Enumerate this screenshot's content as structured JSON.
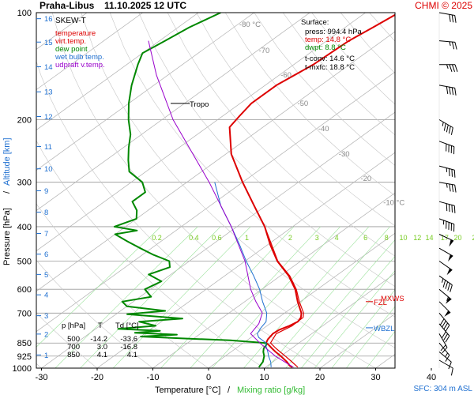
{
  "header": {
    "station": "Praha-Libus",
    "datetime": "11.10.2025 12 UTC",
    "copyright": "CHMI © 2025"
  },
  "chart_data": {
    "type": "line",
    "title": "Praha-Libus   11.10.2025 12 UTC",
    "xlabel": "Temperature [°C]",
    "xlabel_sep": "/",
    "xlabel_mix": "Mixing ratio [g/kg]",
    "ylabel": "Pressure [hPa]",
    "ylabel_sep": "/",
    "ylabel_alt": "Altitude [km]",
    "xlim": [
      -35,
      45
    ],
    "ylim": [
      1000,
      100
    ],
    "y_scale": "log",
    "grid": true,
    "x_ticks": [
      -30,
      -20,
      -10,
      0,
      10,
      20,
      30,
      40
    ],
    "pressure_ticks": [
      100,
      200,
      300,
      400,
      500,
      600,
      700,
      850,
      925,
      1000
    ],
    "altitude_ticks": [
      {
        "label": "1",
        "p": 918
      },
      {
        "label": "2",
        "p": 802
      },
      {
        "label": "3",
        "p": 712
      },
      {
        "label": "4",
        "p": 622
      },
      {
        "label": "5",
        "p": 545
      },
      {
        "label": "6",
        "p": 478
      },
      {
        "label": "7",
        "p": 418
      },
      {
        "label": "8",
        "p": 364
      },
      {
        "label": "9",
        "p": 317
      },
      {
        "label": "10",
        "p": 275
      },
      {
        "label": "11",
        "p": 238
      },
      {
        "label": "12",
        "p": 196
      },
      {
        "label": "13",
        "p": 167
      },
      {
        "label": "14",
        "p": 142
      },
      {
        "label": "15",
        "p": 121
      },
      {
        "label": "16",
        "p": 104
      }
    ],
    "isotherm_labels": [
      "-80 °C",
      "-70",
      "-60",
      "-50",
      "-40",
      "-30",
      "-20",
      "-10 °C"
    ],
    "mixing_ratio_labels": [
      "0.2",
      "0.4",
      "0.6",
      "1",
      "2",
      "3",
      "4",
      "6",
      "8",
      "10",
      "12",
      "14",
      "17",
      "20",
      "25"
    ],
    "legend_title": "SKEW-T",
    "legend": [
      {
        "name": "temperature",
        "color": "#dd0000"
      },
      {
        "name": "virt.temp.",
        "color": "#dd0000"
      },
      {
        "name": "dew point",
        "color": "#008800"
      },
      {
        "name": "wet bulb temp.",
        "color": "#1e6fd0"
      },
      {
        "name": "udpraft v.temp.",
        "color": "#9900cc"
      }
    ],
    "surface": {
      "title": "Surface:",
      "press": "press: 994.4 hPa",
      "temp": "temp: 14.8 °C",
      "dwpt": "dwpt: 8.8 °C",
      "tconv": "t-conv: 14.6 °C",
      "tmxfc": "t-mxfc: 18.8 °C"
    },
    "levels_table": {
      "headers": [
        "p [hPa]",
        "T",
        "Td [°C]"
      ],
      "rows": [
        [
          "500",
          "-14.2",
          "-33.6"
        ],
        [
          "700",
          "3.0",
          "-16.8"
        ],
        [
          "850",
          "4.1",
          "4.1"
        ]
      ]
    },
    "annotations": {
      "tropo": "Tropo",
      "tropo_p": 180,
      "mxws": "MXWS",
      "mxws_p": 640,
      "fzl": "FZL",
      "fzl_p": 650,
      "wbzl": "WBZL",
      "wbzl_p": 770
    },
    "sfc_note": "SFC: 304 m ASL",
    "series": [
      {
        "name": "temperature",
        "color": "#dd0000",
        "points": [
          [
            994,
            14.8
          ],
          [
            985,
            14
          ],
          [
            960,
            12.5
          ],
          [
            925,
            10
          ],
          [
            900,
            8
          ],
          [
            880,
            6.5
          ],
          [
            860,
            5
          ],
          [
            850,
            4.1
          ],
          [
            830,
            3.5
          ],
          [
            800,
            3
          ],
          [
            780,
            3.2
          ],
          [
            760,
            4
          ],
          [
            740,
            4.5
          ],
          [
            720,
            4
          ],
          [
            700,
            3
          ],
          [
            650,
            -0.5
          ],
          [
            600,
            -4
          ],
          [
            550,
            -8.5
          ],
          [
            500,
            -14.2
          ],
          [
            450,
            -19.5
          ],
          [
            400,
            -25
          ],
          [
            350,
            -32
          ],
          [
            300,
            -40
          ],
          [
            250,
            -49
          ],
          [
            210,
            -56
          ],
          [
            195,
            -57
          ],
          [
            180,
            -58
          ],
          [
            160,
            -58
          ],
          [
            140,
            -56.5
          ],
          [
            120,
            -56
          ],
          [
            110,
            -55
          ],
          [
            100,
            -54
          ]
        ]
      },
      {
        "name": "virt.temp.",
        "color": "#dd0000",
        "points": [
          [
            994,
            15.8
          ],
          [
            960,
            13.4
          ],
          [
            925,
            10.8
          ],
          [
            880,
            7.2
          ],
          [
            850,
            4.9
          ],
          [
            800,
            3.6
          ],
          [
            760,
            4.5
          ],
          [
            720,
            4.4
          ],
          [
            700,
            3.4
          ],
          [
            650,
            -0.2
          ],
          [
            600,
            -3.8
          ],
          [
            550,
            -8.3
          ],
          [
            500,
            -14.1
          ],
          [
            400,
            -25
          ],
          [
            300,
            -40
          ]
        ]
      },
      {
        "name": "dew point",
        "color": "#008800",
        "points": [
          [
            994,
            8.8
          ],
          [
            960,
            8.2
          ],
          [
            925,
            7
          ],
          [
            900,
            5.8
          ],
          [
            880,
            5
          ],
          [
            860,
            4.6
          ],
          [
            850,
            4.1
          ],
          [
            835,
            -3
          ],
          [
            825,
            -12
          ],
          [
            815,
            -20
          ],
          [
            805,
            -14
          ],
          [
            795,
            -22
          ],
          [
            785,
            -18
          ],
          [
            775,
            -26
          ],
          [
            760,
            -20
          ],
          [
            740,
            -24
          ],
          [
            725,
            -17
          ],
          [
            705,
            -28
          ],
          [
            690,
            -22
          ],
          [
            670,
            -30
          ],
          [
            650,
            -32
          ],
          [
            630,
            -28
          ],
          [
            600,
            -31
          ],
          [
            570,
            -30
          ],
          [
            545,
            -34
          ],
          [
            520,
            -32
          ],
          [
            500,
            -33.6
          ],
          [
            480,
            -38
          ],
          [
            460,
            -42
          ],
          [
            440,
            -46
          ],
          [
            420,
            -50
          ],
          [
            410,
            -47
          ],
          [
            400,
            -52
          ],
          [
            380,
            -50
          ],
          [
            360,
            -52
          ],
          [
            340,
            -55
          ],
          [
            320,
            -55
          ],
          [
            300,
            -58
          ],
          [
            280,
            -63
          ],
          [
            260,
            -66
          ],
          [
            240,
            -69
          ],
          [
            220,
            -72
          ],
          [
            200,
            -76
          ],
          [
            180,
            -80
          ],
          [
            160,
            -84
          ],
          [
            140,
            -88
          ],
          [
            130,
            -90
          ],
          [
            120,
            -89
          ],
          [
            110,
            -88
          ],
          [
            100,
            -86
          ]
        ]
      },
      {
        "name": "wet bulb temp.",
        "color": "#1e6fd0",
        "points": [
          [
            994,
            11
          ],
          [
            960,
            9.6
          ],
          [
            925,
            7.8
          ],
          [
            900,
            6.6
          ],
          [
            870,
            5
          ],
          [
            850,
            4.1
          ],
          [
            820,
            1.4
          ],
          [
            800,
            0.2
          ],
          [
            770,
            -0.6
          ],
          [
            740,
            -1.2
          ],
          [
            700,
            -3.2
          ],
          [
            650,
            -6.8
          ],
          [
            600,
            -10.4
          ],
          [
            550,
            -14.8
          ],
          [
            500,
            -19.8
          ],
          [
            450,
            -25
          ],
          [
            400,
            -31
          ],
          [
            350,
            -38
          ],
          [
            300,
            -45
          ]
        ]
      },
      {
        "name": "udpraft v.temp.",
        "color": "#9900cc",
        "points": [
          [
            994,
            15
          ],
          [
            925,
            9
          ],
          [
            850,
            3
          ],
          [
            800,
            -1
          ],
          [
            750,
            -2
          ],
          [
            700,
            -4
          ],
          [
            650,
            -8
          ],
          [
            600,
            -12
          ],
          [
            500,
            -20
          ],
          [
            400,
            -31
          ],
          [
            300,
            -46
          ],
          [
            200,
            -68
          ],
          [
            150,
            -82
          ],
          [
            120,
            -92
          ]
        ]
      }
    ],
    "wind_barbs": [
      {
        "p": 100,
        "dir": 280,
        "spd": 30
      },
      {
        "p": 120,
        "dir": 275,
        "spd": 25
      },
      {
        "p": 140,
        "dir": 270,
        "spd": 35
      },
      {
        "p": 160,
        "dir": 280,
        "spd": 40
      },
      {
        "p": 200,
        "dir": 300,
        "spd": 45
      },
      {
        "p": 230,
        "dir": 290,
        "spd": 40
      },
      {
        "p": 270,
        "dir": 285,
        "spd": 35
      },
      {
        "p": 300,
        "dir": 280,
        "spd": 35
      },
      {
        "p": 340,
        "dir": 285,
        "spd": 40
      },
      {
        "p": 380,
        "dir": 290,
        "spd": 45
      },
      {
        "p": 420,
        "dir": 295,
        "spd": 50
      },
      {
        "p": 460,
        "dir": 300,
        "spd": 50
      },
      {
        "p": 500,
        "dir": 305,
        "spd": 50
      },
      {
        "p": 550,
        "dir": 305,
        "spd": 45
      },
      {
        "p": 600,
        "dir": 310,
        "spd": 55
      },
      {
        "p": 650,
        "dir": 315,
        "spd": 50
      },
      {
        "p": 700,
        "dir": 320,
        "spd": 40
      },
      {
        "p": 750,
        "dir": 320,
        "spd": 30
      },
      {
        "p": 800,
        "dir": 330,
        "spd": 20
      },
      {
        "p": 850,
        "dir": 320,
        "spd": 15
      },
      {
        "p": 900,
        "dir": 310,
        "spd": 10
      },
      {
        "p": 950,
        "dir": 300,
        "spd": 10
      }
    ]
  }
}
